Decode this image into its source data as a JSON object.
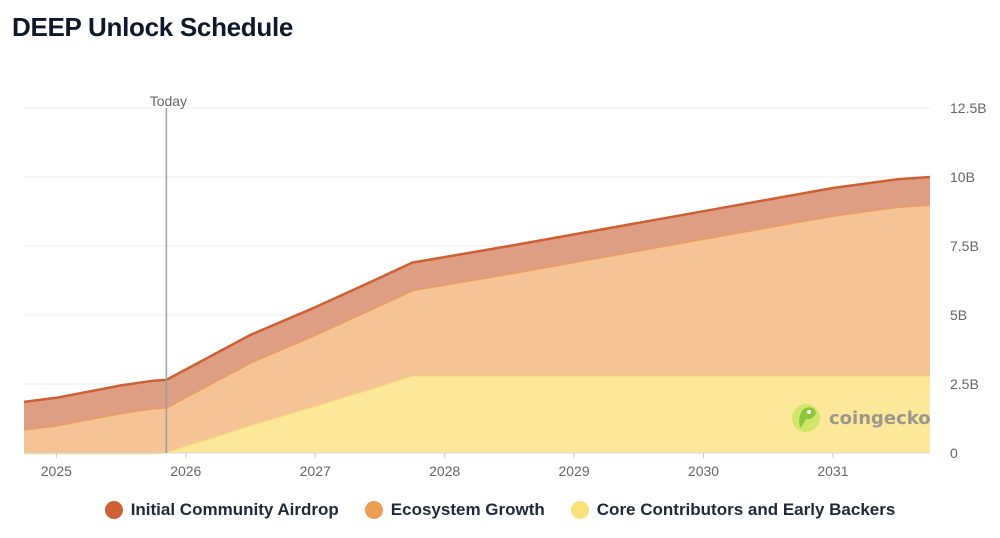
{
  "page": {
    "title": "DEEP Unlock Schedule"
  },
  "chart_data": {
    "type": "area",
    "stacked": true,
    "title": "DEEP Unlock Schedule",
    "x_axis": {
      "min": 2024.75,
      "max": 2031.75,
      "ticks": [
        "2025",
        "2026",
        "2027",
        "2028",
        "2029",
        "2030",
        "2031"
      ]
    },
    "y_axis": {
      "min": 0,
      "max": 12.5,
      "side": "right",
      "tick_values": [
        0,
        2.5,
        5,
        7.5,
        10,
        12.5
      ],
      "tick_labels": [
        "0",
        "2.5B",
        "5B",
        "7.5B",
        "10B",
        "12.5B"
      ]
    },
    "x": [
      2024.75,
      2025.0,
      2025.5,
      2025.75,
      2025.85,
      2026.5,
      2027.0,
      2027.5,
      2027.75,
      2028.5,
      2029.0,
      2029.5,
      2030.0,
      2030.5,
      2031.0,
      2031.5,
      2031.75
    ],
    "series": [
      {
        "name": "Core Contributors and Early Backers",
        "color": "#fde89a",
        "values": [
          0,
          0,
          0,
          0,
          0.03,
          1.0,
          1.7,
          2.42,
          2.8,
          2.8,
          2.8,
          2.8,
          2.8,
          2.8,
          2.8,
          2.8,
          2.8
        ]
      },
      {
        "name": "Ecosystem Growth",
        "color": "#f5c396",
        "values": [
          0.85,
          1.0,
          1.45,
          1.62,
          1.62,
          2.28,
          2.58,
          2.93,
          3.1,
          3.7,
          4.12,
          4.54,
          4.96,
          5.38,
          5.8,
          6.12,
          6.2
        ]
      },
      {
        "name": "Initial Community Airdrop",
        "color": "#de9e84",
        "values": [
          1.0,
          1.0,
          1.0,
          1.0,
          1.0,
          1.0,
          1.0,
          1.0,
          1.0,
          1.0,
          1.0,
          1.0,
          1.0,
          1.0,
          1.0,
          1.0,
          1.0
        ]
      }
    ],
    "annotations": [
      {
        "type": "vline",
        "x": 2025.85,
        "label": "Today"
      }
    ],
    "legend": {
      "position": "bottom",
      "items": [
        {
          "label": "Initial Community Airdrop",
          "color": "#cf5f35"
        },
        {
          "label": "Ecosystem Growth",
          "color": "#ee9d57"
        },
        {
          "label": "Core Contributors and Early Backers",
          "color": "#fae17a"
        }
      ]
    },
    "watermark": "coingecko"
  }
}
